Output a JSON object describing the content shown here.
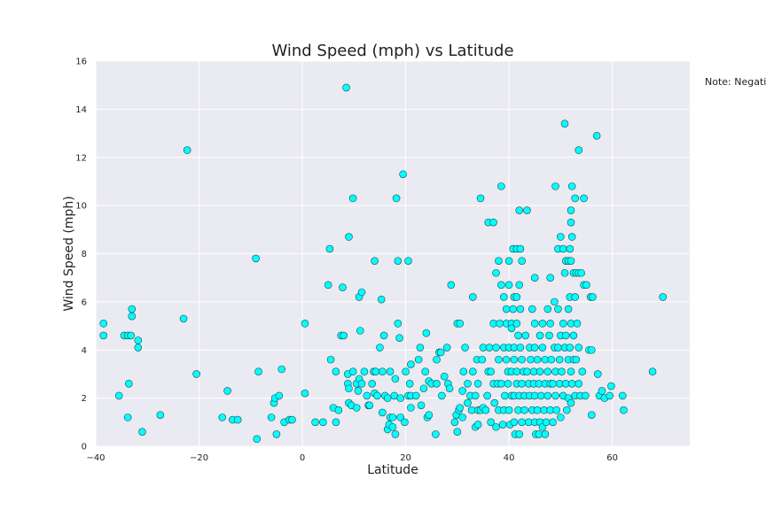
{
  "chart_data": {
    "type": "scatter",
    "title": "Wind Speed (mph) vs Latitude",
    "xlabel": "Latitude",
    "ylabel": "Wind Speed (mph)",
    "note": "Note: Negativ",
    "xlim": [
      -40,
      75
    ],
    "ylim": [
      0,
      16
    ],
    "xticks": [
      -40,
      -20,
      0,
      20,
      40,
      60
    ],
    "yticks": [
      0,
      2,
      4,
      6,
      8,
      10,
      12,
      14,
      16
    ],
    "grid": true,
    "marker_color": "#00ffff",
    "marker_edge_color": "#1a4a4a",
    "background_color": "#eaeaf2",
    "grid_color": "#ffffff",
    "points": [
      [
        -38.5,
        5.1
      ],
      [
        -38.5,
        4.6
      ],
      [
        -35.5,
        2.1
      ],
      [
        -34.5,
        4.6
      ],
      [
        -33.8,
        4.6
      ],
      [
        -33.8,
        1.2
      ],
      [
        -33.6,
        2.6
      ],
      [
        -33.2,
        4.6
      ],
      [
        -33.0,
        5.7
      ],
      [
        -33.0,
        5.4
      ],
      [
        -31.8,
        4.4
      ],
      [
        -31.8,
        4.1
      ],
      [
        -31.0,
        0.6
      ],
      [
        -27.5,
        1.3
      ],
      [
        -23.0,
        5.3
      ],
      [
        -22.3,
        12.3
      ],
      [
        -20.5,
        3.0
      ],
      [
        -15.5,
        1.2
      ],
      [
        -14.5,
        2.3
      ],
      [
        -13.5,
        1.1
      ],
      [
        -12.5,
        1.1
      ],
      [
        -9.0,
        7.8
      ],
      [
        -8.8,
        0.3
      ],
      [
        -8.5,
        3.1
      ],
      [
        -6.0,
        1.2
      ],
      [
        -5.5,
        1.8
      ],
      [
        -5.3,
        2.0
      ],
      [
        -5.0,
        0.5
      ],
      [
        -4.5,
        2.1
      ],
      [
        -4.0,
        3.2
      ],
      [
        -3.5,
        1.0
      ],
      [
        -2.5,
        1.1
      ],
      [
        -2.0,
        1.1
      ],
      [
        0.5,
        5.1
      ],
      [
        0.5,
        2.2
      ],
      [
        2.5,
        1.0
      ],
      [
        4.0,
        1.0
      ],
      [
        5.0,
        6.7
      ],
      [
        5.3,
        8.2
      ],
      [
        5.5,
        3.6
      ],
      [
        6.0,
        1.6
      ],
      [
        6.5,
        1.0
      ],
      [
        6.5,
        3.1
      ],
      [
        7.0,
        1.5
      ],
      [
        7.5,
        4.6
      ],
      [
        7.8,
        6.6
      ],
      [
        8.0,
        4.6
      ],
      [
        8.5,
        14.9
      ],
      [
        8.8,
        3.0
      ],
      [
        8.8,
        2.6
      ],
      [
        9.0,
        2.4
      ],
      [
        9.0,
        1.8
      ],
      [
        9.0,
        8.7
      ],
      [
        9.5,
        1.7
      ],
      [
        9.8,
        3.1
      ],
      [
        9.8,
        10.3
      ],
      [
        10.5,
        1.6
      ],
      [
        10.5,
        2.6
      ],
      [
        10.8,
        2.3
      ],
      [
        11.0,
        2.8
      ],
      [
        11.0,
        6.2
      ],
      [
        11.2,
        4.8
      ],
      [
        11.5,
        6.4
      ],
      [
        11.5,
        2.6
      ],
      [
        12.0,
        3.1
      ],
      [
        12.5,
        2.1
      ],
      [
        12.8,
        1.7
      ],
      [
        13.0,
        1.7
      ],
      [
        13.5,
        2.6
      ],
      [
        13.8,
        3.1
      ],
      [
        14.0,
        7.7
      ],
      [
        14.0,
        2.2
      ],
      [
        14.2,
        3.1
      ],
      [
        14.5,
        2.1
      ],
      [
        15.0,
        4.1
      ],
      [
        15.3,
        6.1
      ],
      [
        15.5,
        3.1
      ],
      [
        15.5,
        1.4
      ],
      [
        15.8,
        4.6
      ],
      [
        16.0,
        2.1
      ],
      [
        16.5,
        0.7
      ],
      [
        16.5,
        2.0
      ],
      [
        16.8,
        0.9
      ],
      [
        17.0,
        1.2
      ],
      [
        17.0,
        3.1
      ],
      [
        17.5,
        0.8
      ],
      [
        17.5,
        1.2
      ],
      [
        17.8,
        2.1
      ],
      [
        18.0,
        2.8
      ],
      [
        18.0,
        0.5
      ],
      [
        18.2,
        10.3
      ],
      [
        18.5,
        7.7
      ],
      [
        18.5,
        5.1
      ],
      [
        18.8,
        4.5
      ],
      [
        19.0,
        1.2
      ],
      [
        19.0,
        2.0
      ],
      [
        19.5,
        11.3
      ],
      [
        19.8,
        1.0
      ],
      [
        20.0,
        3.1
      ],
      [
        20.5,
        7.7
      ],
      [
        20.5,
        2.1
      ],
      [
        20.8,
        2.6
      ],
      [
        21.0,
        3.4
      ],
      [
        21.0,
        1.6
      ],
      [
        21.0,
        2.1
      ],
      [
        22.0,
        2.1
      ],
      [
        22.5,
        3.6
      ],
      [
        22.8,
        4.1
      ],
      [
        23.0,
        1.7
      ],
      [
        23.5,
        2.4
      ],
      [
        23.8,
        3.1
      ],
      [
        24.0,
        4.7
      ],
      [
        24.2,
        1.2
      ],
      [
        24.5,
        1.3
      ],
      [
        24.5,
        2.7
      ],
      [
        25.0,
        2.6
      ],
      [
        25.8,
        0.5
      ],
      [
        26.0,
        3.6
      ],
      [
        26.0,
        2.6
      ],
      [
        26.5,
        3.9
      ],
      [
        26.8,
        3.9
      ],
      [
        27.0,
        2.1
      ],
      [
        27.5,
        2.9
      ],
      [
        28.0,
        4.1
      ],
      [
        28.2,
        2.6
      ],
      [
        28.5,
        2.4
      ],
      [
        28.8,
        6.7
      ],
      [
        29.5,
        1.0
      ],
      [
        29.8,
        1.3
      ],
      [
        30.0,
        5.1
      ],
      [
        30.0,
        0.6
      ],
      [
        30.3,
        1.5
      ],
      [
        30.5,
        1.6
      ],
      [
        30.5,
        5.1
      ],
      [
        31.0,
        2.3
      ],
      [
        31.0,
        1.2
      ],
      [
        31.2,
        3.1
      ],
      [
        31.5,
        4.1
      ],
      [
        32.0,
        2.6
      ],
      [
        32.0,
        1.8
      ],
      [
        32.5,
        2.1
      ],
      [
        32.8,
        1.5
      ],
      [
        33.0,
        6.2
      ],
      [
        33.0,
        3.1
      ],
      [
        33.5,
        0.8
      ],
      [
        33.5,
        2.1
      ],
      [
        33.8,
        3.6
      ],
      [
        34.0,
        1.5
      ],
      [
        34.0,
        0.9
      ],
      [
        34.0,
        2.6
      ],
      [
        34.5,
        10.3
      ],
      [
        34.5,
        1.5
      ],
      [
        34.8,
        3.6
      ],
      [
        35.0,
        1.6
      ],
      [
        35.0,
        4.1
      ],
      [
        35.5,
        1.5
      ],
      [
        35.8,
        2.1
      ],
      [
        36.0,
        9.3
      ],
      [
        36.0,
        3.1
      ],
      [
        36.2,
        4.1
      ],
      [
        36.5,
        3.1
      ],
      [
        36.5,
        1.0
      ],
      [
        37.0,
        9.3
      ],
      [
        37.0,
        2.6
      ],
      [
        37.0,
        5.1
      ],
      [
        37.2,
        1.8
      ],
      [
        37.5,
        7.2
      ],
      [
        37.5,
        0.8
      ],
      [
        37.5,
        4.1
      ],
      [
        37.8,
        2.6
      ],
      [
        38.0,
        7.7
      ],
      [
        38.0,
        3.6
      ],
      [
        38.0,
        1.5
      ],
      [
        38.2,
        5.1
      ],
      [
        38.5,
        6.7
      ],
      [
        38.5,
        10.8
      ],
      [
        38.5,
        2.6
      ],
      [
        38.8,
        0.9
      ],
      [
        39.0,
        4.1
      ],
      [
        39.0,
        1.5
      ],
      [
        39.0,
        6.2
      ],
      [
        39.2,
        2.1
      ],
      [
        39.5,
        3.6
      ],
      [
        39.5,
        5.1
      ],
      [
        39.5,
        5.7
      ],
      [
        39.8,
        3.1
      ],
      [
        39.8,
        2.6
      ],
      [
        40.0,
        4.1
      ],
      [
        40.0,
        7.7
      ],
      [
        40.0,
        1.5
      ],
      [
        40.0,
        6.7
      ],
      [
        40.2,
        0.9
      ],
      [
        40.5,
        5.1
      ],
      [
        40.5,
        4.9
      ],
      [
        40.5,
        2.1
      ],
      [
        40.5,
        3.1
      ],
      [
        40.8,
        8.2
      ],
      [
        40.8,
        5.7
      ],
      [
        41.0,
        6.2
      ],
      [
        41.0,
        4.1
      ],
      [
        41.0,
        3.6
      ],
      [
        41.0,
        2.1
      ],
      [
        41.0,
        1.0
      ],
      [
        41.2,
        0.5
      ],
      [
        41.5,
        8.2
      ],
      [
        41.5,
        6.2
      ],
      [
        41.5,
        5.1
      ],
      [
        41.5,
        3.1
      ],
      [
        41.5,
        2.6
      ],
      [
        41.8,
        4.6
      ],
      [
        41.8,
        1.5
      ],
      [
        42.0,
        9.8
      ],
      [
        42.0,
        6.7
      ],
      [
        42.0,
        2.1
      ],
      [
        42.0,
        0.5
      ],
      [
        42.2,
        8.2
      ],
      [
        42.2,
        5.7
      ],
      [
        42.2,
        4.1
      ],
      [
        42.5,
        7.7
      ],
      [
        42.5,
        3.6
      ],
      [
        42.5,
        2.6
      ],
      [
        42.5,
        1.0
      ],
      [
        42.8,
        3.1
      ],
      [
        43.0,
        2.1
      ],
      [
        43.0,
        1.5
      ],
      [
        43.2,
        4.6
      ],
      [
        43.5,
        9.8
      ],
      [
        43.5,
        3.1
      ],
      [
        43.8,
        2.6
      ],
      [
        43.8,
        1.0
      ],
      [
        44.0,
        4.1
      ],
      [
        44.0,
        2.1
      ],
      [
        44.2,
        3.6
      ],
      [
        44.5,
        5.7
      ],
      [
        44.5,
        1.5
      ],
      [
        44.8,
        3.1
      ],
      [
        44.8,
        2.6
      ],
      [
        45.0,
        7.0
      ],
      [
        45.0,
        5.1
      ],
      [
        45.0,
        4.1
      ],
      [
        45.0,
        2.1
      ],
      [
        45.0,
        1.0
      ],
      [
        45.2,
        0.5
      ],
      [
        45.5,
        3.6
      ],
      [
        45.5,
        1.5
      ],
      [
        45.8,
        0.5
      ],
      [
        45.8,
        2.6
      ],
      [
        46.0,
        4.6
      ],
      [
        46.0,
        3.1
      ],
      [
        46.0,
        1.0
      ],
      [
        46.2,
        2.1
      ],
      [
        46.5,
        5.1
      ],
      [
        46.5,
        0.8
      ],
      [
        46.5,
        4.1
      ],
      [
        46.8,
        1.5
      ],
      [
        47.0,
        3.6
      ],
      [
        47.0,
        2.6
      ],
      [
        47.0,
        0.5
      ],
      [
        47.2,
        1.0
      ],
      [
        47.5,
        5.7
      ],
      [
        47.5,
        3.1
      ],
      [
        47.5,
        2.1
      ],
      [
        47.8,
        4.6
      ],
      [
        48.0,
        7.0
      ],
      [
        48.0,
        5.1
      ],
      [
        48.0,
        2.6
      ],
      [
        48.0,
        1.5
      ],
      [
        48.2,
        3.6
      ],
      [
        48.5,
        2.6
      ],
      [
        48.5,
        1.0
      ],
      [
        48.8,
        6.0
      ],
      [
        48.8,
        4.1
      ],
      [
        49.0,
        10.8
      ],
      [
        49.0,
        3.1
      ],
      [
        49.0,
        2.1
      ],
      [
        49.2,
        1.5
      ],
      [
        49.5,
        8.2
      ],
      [
        49.5,
        5.7
      ],
      [
        49.5,
        4.1
      ],
      [
        49.8,
        3.6
      ],
      [
        49.8,
        2.6
      ],
      [
        50.0,
        8.7
      ],
      [
        50.0,
        4.6
      ],
      [
        50.0,
        1.2
      ],
      [
        50.2,
        3.1
      ],
      [
        50.5,
        8.2
      ],
      [
        50.5,
        5.1
      ],
      [
        50.5,
        2.1
      ],
      [
        50.8,
        13.4
      ],
      [
        50.8,
        7.2
      ],
      [
        50.8,
        4.1
      ],
      [
        51.0,
        7.7
      ],
      [
        51.0,
        4.6
      ],
      [
        51.0,
        2.6
      ],
      [
        51.2,
        1.5
      ],
      [
        51.5,
        7.7
      ],
      [
        51.5,
        5.7
      ],
      [
        51.5,
        3.6
      ],
      [
        51.5,
        2.0
      ],
      [
        51.8,
        8.2
      ],
      [
        51.8,
        6.2
      ],
      [
        51.8,
        4.1
      ],
      [
        52.0,
        9.8
      ],
      [
        52.0,
        9.3
      ],
      [
        52.0,
        7.7
      ],
      [
        52.0,
        5.1
      ],
      [
        52.0,
        3.1
      ],
      [
        52.0,
        1.8
      ],
      [
        52.2,
        10.8
      ],
      [
        52.2,
        8.7
      ],
      [
        52.2,
        2.6
      ],
      [
        52.5,
        7.2
      ],
      [
        52.5,
        4.6
      ],
      [
        52.5,
        3.6
      ],
      [
        52.8,
        10.3
      ],
      [
        52.8,
        6.2
      ],
      [
        52.8,
        2.1
      ],
      [
        53.0,
        7.2
      ],
      [
        53.0,
        3.6
      ],
      [
        53.2,
        5.1
      ],
      [
        53.5,
        12.3
      ],
      [
        53.5,
        7.2
      ],
      [
        53.5,
        4.1
      ],
      [
        53.5,
        2.6
      ],
      [
        53.8,
        2.1
      ],
      [
        54.0,
        7.2
      ],
      [
        54.2,
        3.1
      ],
      [
        54.5,
        10.3
      ],
      [
        54.5,
        6.7
      ],
      [
        54.8,
        2.1
      ],
      [
        55.0,
        6.7
      ],
      [
        55.5,
        4.0
      ],
      [
        55.8,
        6.2
      ],
      [
        56.0,
        1.3
      ],
      [
        56.0,
        4.0
      ],
      [
        56.2,
        6.2
      ],
      [
        57.0,
        12.9
      ],
      [
        57.2,
        3.0
      ],
      [
        57.5,
        2.1
      ],
      [
        58.0,
        2.3
      ],
      [
        58.5,
        2.0
      ],
      [
        59.5,
        2.1
      ],
      [
        59.8,
        2.5
      ],
      [
        62.0,
        2.1
      ],
      [
        62.2,
        1.5
      ],
      [
        67.8,
        3.1
      ],
      [
        69.8,
        6.2
      ]
    ]
  }
}
